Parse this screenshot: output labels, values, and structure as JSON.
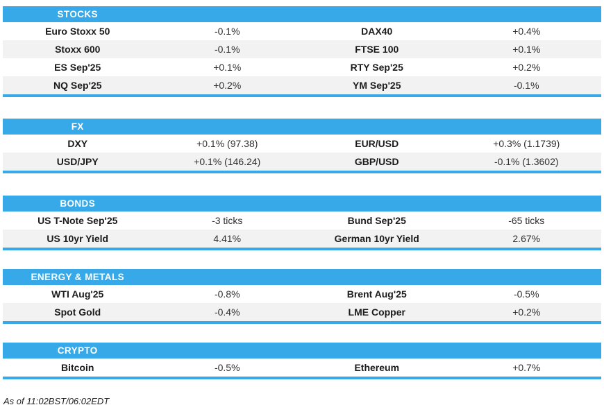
{
  "colors": {
    "accent": "#38A9E8",
    "row_alt": "#F2F2F3",
    "header_text": "#FFFFFF"
  },
  "sections": [
    {
      "title": "STOCKS",
      "rows": [
        [
          "Euro Stoxx 50",
          "-0.1%",
          "DAX40",
          "+0.4%"
        ],
        [
          "Stoxx 600",
          "-0.1%",
          "FTSE 100",
          "+0.1%"
        ],
        [
          "ES Sep'25",
          "+0.1%",
          "RTY Sep'25",
          "+0.2%"
        ],
        [
          "NQ Sep'25",
          "+0.2%",
          "YM Sep'25",
          "-0.1%"
        ]
      ]
    },
    {
      "title": "FX",
      "rows": [
        [
          "DXY",
          "+0.1% (97.38)",
          "EUR/USD",
          "+0.3% (1.1739)"
        ],
        [
          "USD/JPY",
          "+0.1% (146.24)",
          "GBP/USD",
          "-0.1% (1.3602)"
        ]
      ]
    },
    {
      "title": "BONDS",
      "rows": [
        [
          "US T-Note Sep'25",
          "-3 ticks",
          "Bund Sep'25",
          "-65 ticks"
        ],
        [
          "US 10yr Yield",
          "4.41%",
          "German 10yr Yield",
          "2.67%"
        ]
      ]
    },
    {
      "title": "ENERGY & METALS",
      "rows": [
        [
          "WTI Aug'25",
          "-0.8%",
          "Brent Aug'25",
          "-0.5%"
        ],
        [
          "Spot Gold",
          "-0.4%",
          "LME Copper",
          "+0.2%"
        ]
      ]
    },
    {
      "title": "CRYPTO",
      "rows": [
        [
          "Bitcoin",
          "-0.5%",
          "Ethereum",
          "+0.7%"
        ]
      ]
    }
  ],
  "footer": {
    "as_of": "As of 11:02BST/06:02EDT"
  }
}
